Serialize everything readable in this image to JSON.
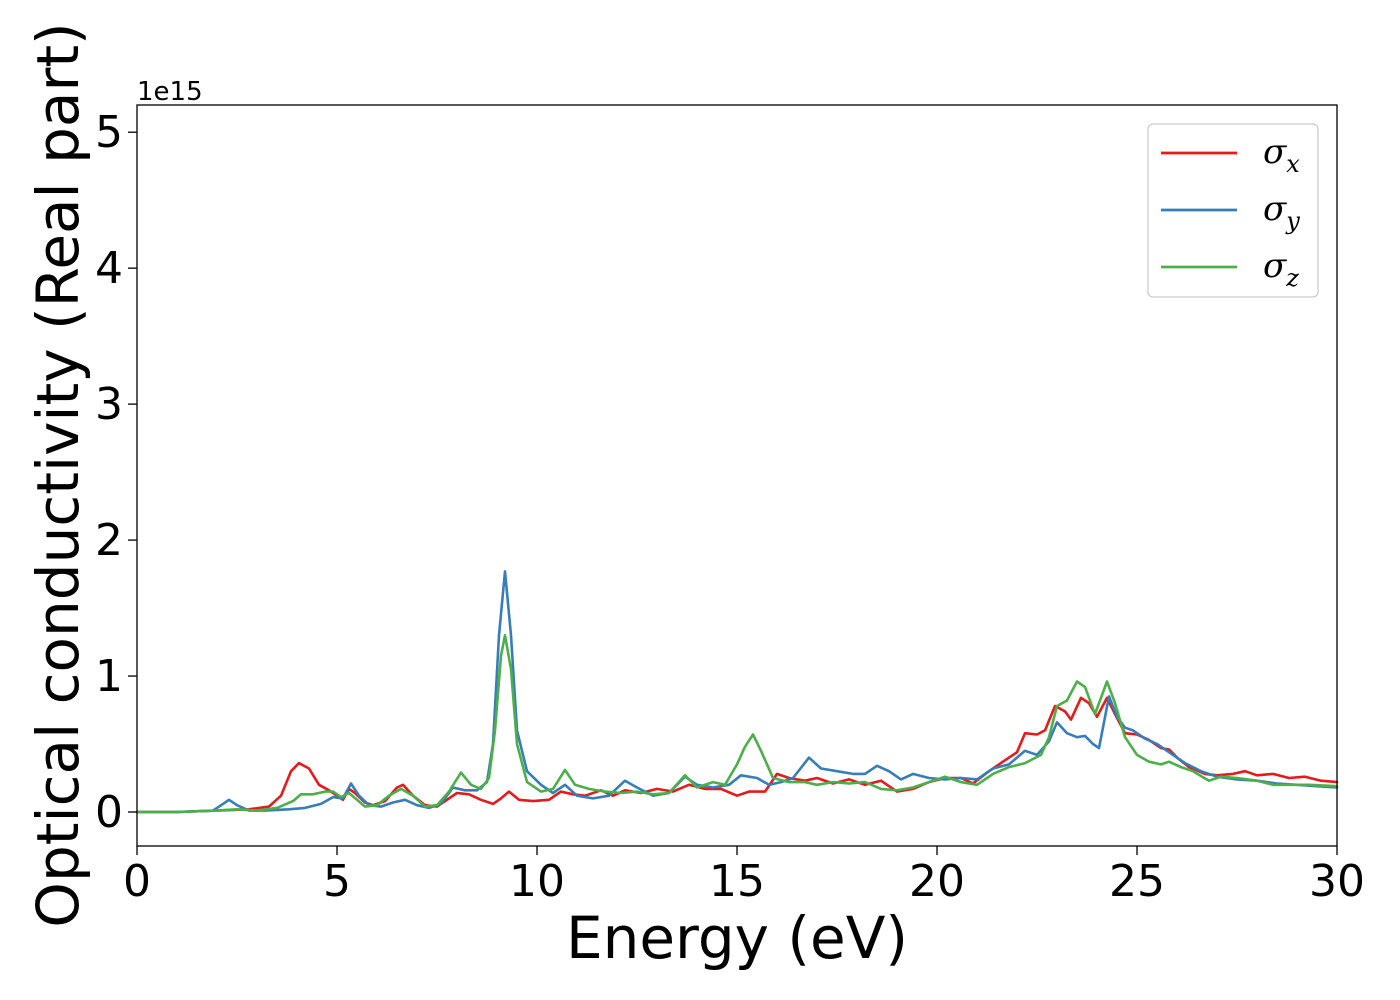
{
  "chart_data": {
    "type": "line",
    "xlabel": "Energy (eV)",
    "ylabel": "Optical conductivity (Real part)",
    "y_offset_label": "1e15",
    "xlim": [
      0,
      30
    ],
    "ylim": [
      -0.25,
      5.2
    ],
    "xticks": [
      0,
      5,
      10,
      15,
      20,
      25,
      30
    ],
    "yticks": [
      0,
      1,
      2,
      3,
      4,
      5
    ],
    "grid": false,
    "legend_position": "top-right",
    "series": [
      {
        "name": "σ",
        "subscript": "x",
        "color": "#e41a1c",
        "points": [
          [
            0,
            0
          ],
          [
            1,
            0
          ],
          [
            2,
            0.01
          ],
          [
            2.8,
            0.02
          ],
          [
            3.3,
            0.04
          ],
          [
            3.6,
            0.12
          ],
          [
            3.85,
            0.3
          ],
          [
            4.05,
            0.36
          ],
          [
            4.3,
            0.32
          ],
          [
            4.55,
            0.2
          ],
          [
            4.8,
            0.16
          ],
          [
            5.0,
            0.12
          ],
          [
            5.15,
            0.09
          ],
          [
            5.3,
            0.17
          ],
          [
            5.45,
            0.14
          ],
          [
            5.7,
            0.07
          ],
          [
            5.9,
            0.05
          ],
          [
            6.2,
            0.08
          ],
          [
            6.5,
            0.18
          ],
          [
            6.65,
            0.2
          ],
          [
            6.9,
            0.12
          ],
          [
            7.2,
            0.05
          ],
          [
            7.5,
            0.04
          ],
          [
            7.8,
            0.1
          ],
          [
            8.0,
            0.14
          ],
          [
            8.3,
            0.13
          ],
          [
            8.6,
            0.09
          ],
          [
            8.9,
            0.06
          ],
          [
            9.1,
            0.1
          ],
          [
            9.3,
            0.15
          ],
          [
            9.55,
            0.09
          ],
          [
            9.9,
            0.08
          ],
          [
            10.3,
            0.09
          ],
          [
            10.6,
            0.15
          ],
          [
            10.9,
            0.13
          ],
          [
            11.2,
            0.12
          ],
          [
            11.6,
            0.16
          ],
          [
            11.9,
            0.12
          ],
          [
            12.2,
            0.16
          ],
          [
            12.6,
            0.14
          ],
          [
            13.0,
            0.17
          ],
          [
            13.4,
            0.15
          ],
          [
            13.8,
            0.2
          ],
          [
            14.2,
            0.17
          ],
          [
            14.6,
            0.17
          ],
          [
            15.0,
            0.12
          ],
          [
            15.3,
            0.15
          ],
          [
            15.7,
            0.15
          ],
          [
            16.0,
            0.28
          ],
          [
            16.3,
            0.25
          ],
          [
            16.7,
            0.23
          ],
          [
            17.0,
            0.25
          ],
          [
            17.4,
            0.21
          ],
          [
            17.8,
            0.24
          ],
          [
            18.2,
            0.2
          ],
          [
            18.6,
            0.23
          ],
          [
            19.0,
            0.15
          ],
          [
            19.4,
            0.17
          ],
          [
            19.8,
            0.22
          ],
          [
            20.2,
            0.25
          ],
          [
            20.6,
            0.25
          ],
          [
            20.9,
            0.21
          ],
          [
            21.3,
            0.3
          ],
          [
            21.7,
            0.38
          ],
          [
            22.0,
            0.44
          ],
          [
            22.2,
            0.58
          ],
          [
            22.5,
            0.57
          ],
          [
            22.7,
            0.6
          ],
          [
            22.95,
            0.78
          ],
          [
            23.2,
            0.74
          ],
          [
            23.35,
            0.68
          ],
          [
            23.6,
            0.84
          ],
          [
            23.8,
            0.8
          ],
          [
            24.0,
            0.7
          ],
          [
            24.25,
            0.84
          ],
          [
            24.45,
            0.72
          ],
          [
            24.7,
            0.58
          ],
          [
            25.0,
            0.57
          ],
          [
            25.3,
            0.53
          ],
          [
            25.6,
            0.47
          ],
          [
            25.8,
            0.46
          ],
          [
            26.0,
            0.4
          ],
          [
            26.3,
            0.33
          ],
          [
            26.7,
            0.28
          ],
          [
            27.0,
            0.27
          ],
          [
            27.4,
            0.28
          ],
          [
            27.7,
            0.3
          ],
          [
            28.0,
            0.27
          ],
          [
            28.4,
            0.28
          ],
          [
            28.8,
            0.25
          ],
          [
            29.2,
            0.26
          ],
          [
            29.6,
            0.23
          ],
          [
            30,
            0.22
          ]
        ]
      },
      {
        "name": "σ",
        "subscript": "y",
        "color": "#377eb8",
        "points": [
          [
            0,
            0
          ],
          [
            1,
            0
          ],
          [
            1.9,
            0.01
          ],
          [
            2.15,
            0.06
          ],
          [
            2.3,
            0.09
          ],
          [
            2.5,
            0.05
          ],
          [
            2.8,
            0.01
          ],
          [
            3.2,
            0.01
          ],
          [
            3.8,
            0.02
          ],
          [
            4.2,
            0.03
          ],
          [
            4.6,
            0.06
          ],
          [
            4.9,
            0.11
          ],
          [
            5.15,
            0.1
          ],
          [
            5.35,
            0.21
          ],
          [
            5.55,
            0.12
          ],
          [
            5.8,
            0.05
          ],
          [
            6.1,
            0.04
          ],
          [
            6.4,
            0.07
          ],
          [
            6.7,
            0.09
          ],
          [
            7.0,
            0.05
          ],
          [
            7.3,
            0.03
          ],
          [
            7.6,
            0.06
          ],
          [
            7.9,
            0.18
          ],
          [
            8.2,
            0.16
          ],
          [
            8.5,
            0.16
          ],
          [
            8.75,
            0.22
          ],
          [
            8.9,
            0.5
          ],
          [
            9.05,
            1.3
          ],
          [
            9.2,
            1.77
          ],
          [
            9.35,
            1.3
          ],
          [
            9.5,
            0.6
          ],
          [
            9.75,
            0.3
          ],
          [
            10.1,
            0.2
          ],
          [
            10.4,
            0.14
          ],
          [
            10.7,
            0.2
          ],
          [
            11.0,
            0.12
          ],
          [
            11.4,
            0.1
          ],
          [
            11.8,
            0.12
          ],
          [
            12.2,
            0.23
          ],
          [
            12.5,
            0.18
          ],
          [
            12.9,
            0.12
          ],
          [
            13.3,
            0.14
          ],
          [
            13.7,
            0.26
          ],
          [
            14.0,
            0.2
          ],
          [
            14.4,
            0.18
          ],
          [
            14.8,
            0.2
          ],
          [
            15.1,
            0.27
          ],
          [
            15.5,
            0.25
          ],
          [
            15.8,
            0.2
          ],
          [
            16.1,
            0.22
          ],
          [
            16.4,
            0.25
          ],
          [
            16.8,
            0.4
          ],
          [
            17.1,
            0.32
          ],
          [
            17.5,
            0.3
          ],
          [
            17.9,
            0.28
          ],
          [
            18.2,
            0.28
          ],
          [
            18.5,
            0.34
          ],
          [
            18.8,
            0.3
          ],
          [
            19.1,
            0.24
          ],
          [
            19.4,
            0.28
          ],
          [
            19.8,
            0.25
          ],
          [
            20.2,
            0.24
          ],
          [
            20.6,
            0.25
          ],
          [
            21.0,
            0.24
          ],
          [
            21.4,
            0.32
          ],
          [
            21.8,
            0.35
          ],
          [
            22.2,
            0.45
          ],
          [
            22.5,
            0.42
          ],
          [
            22.8,
            0.52
          ],
          [
            23.0,
            0.66
          ],
          [
            23.25,
            0.58
          ],
          [
            23.5,
            0.55
          ],
          [
            23.7,
            0.56
          ],
          [
            23.9,
            0.5
          ],
          [
            24.05,
            0.47
          ],
          [
            24.3,
            0.85
          ],
          [
            24.5,
            0.7
          ],
          [
            24.7,
            0.62
          ],
          [
            24.9,
            0.6
          ],
          [
            25.2,
            0.54
          ],
          [
            25.5,
            0.5
          ],
          [
            25.8,
            0.44
          ],
          [
            26.2,
            0.36
          ],
          [
            26.6,
            0.3
          ],
          [
            27.0,
            0.26
          ],
          [
            27.5,
            0.24
          ],
          [
            28.0,
            0.23
          ],
          [
            28.5,
            0.21
          ],
          [
            29.0,
            0.2
          ],
          [
            29.5,
            0.19
          ],
          [
            30,
            0.18
          ]
        ]
      },
      {
        "name": "σ",
        "subscript": "z",
        "color": "#4daf4a",
        "points": [
          [
            0,
            0
          ],
          [
            1,
            0
          ],
          [
            2,
            0.01
          ],
          [
            2.5,
            0.02
          ],
          [
            3.0,
            0.01
          ],
          [
            3.5,
            0.03
          ],
          [
            3.9,
            0.08
          ],
          [
            4.1,
            0.13
          ],
          [
            4.4,
            0.13
          ],
          [
            4.7,
            0.15
          ],
          [
            4.9,
            0.15
          ],
          [
            5.1,
            0.11
          ],
          [
            5.3,
            0.14
          ],
          [
            5.5,
            0.09
          ],
          [
            5.7,
            0.04
          ],
          [
            6.0,
            0.05
          ],
          [
            6.3,
            0.12
          ],
          [
            6.6,
            0.17
          ],
          [
            6.9,
            0.12
          ],
          [
            7.2,
            0.04
          ],
          [
            7.5,
            0.05
          ],
          [
            7.8,
            0.15
          ],
          [
            8.1,
            0.29
          ],
          [
            8.35,
            0.2
          ],
          [
            8.6,
            0.17
          ],
          [
            8.8,
            0.25
          ],
          [
            8.95,
            0.6
          ],
          [
            9.1,
            1.15
          ],
          [
            9.2,
            1.3
          ],
          [
            9.35,
            1.05
          ],
          [
            9.5,
            0.5
          ],
          [
            9.75,
            0.22
          ],
          [
            10.1,
            0.15
          ],
          [
            10.4,
            0.17
          ],
          [
            10.7,
            0.31
          ],
          [
            10.95,
            0.2
          ],
          [
            11.3,
            0.17
          ],
          [
            11.7,
            0.15
          ],
          [
            12.1,
            0.14
          ],
          [
            12.5,
            0.15
          ],
          [
            12.9,
            0.13
          ],
          [
            13.3,
            0.14
          ],
          [
            13.7,
            0.27
          ],
          [
            14.0,
            0.18
          ],
          [
            14.4,
            0.22
          ],
          [
            14.7,
            0.2
          ],
          [
            15.0,
            0.35
          ],
          [
            15.2,
            0.48
          ],
          [
            15.4,
            0.57
          ],
          [
            15.6,
            0.45
          ],
          [
            15.9,
            0.25
          ],
          [
            16.3,
            0.22
          ],
          [
            16.7,
            0.22
          ],
          [
            17.0,
            0.2
          ],
          [
            17.4,
            0.22
          ],
          [
            17.8,
            0.21
          ],
          [
            18.2,
            0.22
          ],
          [
            18.6,
            0.17
          ],
          [
            19.0,
            0.16
          ],
          [
            19.4,
            0.18
          ],
          [
            19.8,
            0.22
          ],
          [
            20.2,
            0.26
          ],
          [
            20.6,
            0.22
          ],
          [
            21.0,
            0.2
          ],
          [
            21.4,
            0.28
          ],
          [
            21.8,
            0.33
          ],
          [
            22.2,
            0.36
          ],
          [
            22.6,
            0.42
          ],
          [
            22.8,
            0.55
          ],
          [
            23.0,
            0.78
          ],
          [
            23.25,
            0.82
          ],
          [
            23.5,
            0.96
          ],
          [
            23.7,
            0.92
          ],
          [
            23.95,
            0.72
          ],
          [
            24.25,
            0.96
          ],
          [
            24.45,
            0.8
          ],
          [
            24.7,
            0.55
          ],
          [
            25.0,
            0.42
          ],
          [
            25.3,
            0.37
          ],
          [
            25.6,
            0.35
          ],
          [
            25.8,
            0.37
          ],
          [
            26.1,
            0.33
          ],
          [
            26.4,
            0.3
          ],
          [
            26.8,
            0.23
          ],
          [
            27.1,
            0.26
          ],
          [
            27.5,
            0.25
          ],
          [
            28.0,
            0.23
          ],
          [
            28.4,
            0.2
          ],
          [
            28.8,
            0.2
          ],
          [
            29.3,
            0.2
          ],
          [
            30,
            0.19
          ]
        ]
      }
    ]
  }
}
